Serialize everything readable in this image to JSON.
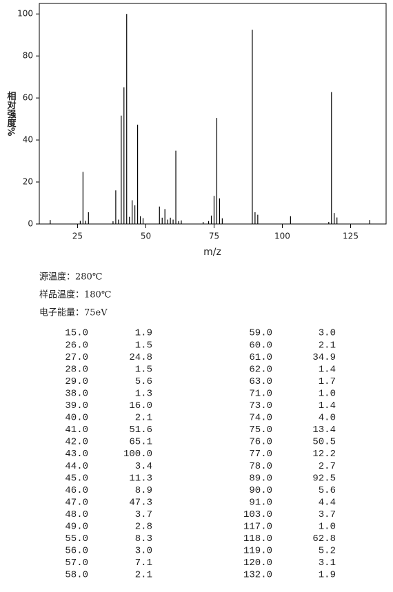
{
  "chart_data": {
    "type": "bar",
    "xlabel": "m/z",
    "ylabel": "相对强度%",
    "x": [
      15,
      26,
      27,
      28,
      29,
      38,
      39,
      40,
      41,
      42,
      43,
      44,
      45,
      46,
      47,
      48,
      49,
      55,
      56,
      57,
      58,
      59,
      60,
      61,
      62,
      63,
      71,
      73,
      74,
      75,
      76,
      77,
      78,
      89,
      90,
      91,
      103,
      117,
      118,
      119,
      120,
      132
    ],
    "values": [
      1.9,
      1.5,
      24.8,
      1.5,
      5.6,
      1.3,
      16.0,
      2.1,
      51.6,
      65.1,
      100.0,
      3.4,
      11.3,
      8.9,
      47.3,
      3.7,
      2.8,
      8.3,
      3.0,
      7.1,
      2.1,
      3.0,
      2.1,
      34.9,
      1.4,
      1.7,
      1.0,
      1.4,
      4.0,
      13.4,
      50.5,
      12.2,
      2.7,
      92.5,
      5.6,
      4.4,
      3.7,
      1.0,
      62.8,
      5.2,
      3.1,
      1.9
    ],
    "color": "#000000",
    "xlim": [
      11,
      138
    ],
    "xticks": [
      25,
      50,
      75,
      100,
      125
    ],
    "ylim": [
      0,
      105
    ],
    "yticks": [
      0,
      20,
      40,
      60,
      80,
      100
    ]
  },
  "conditions": [
    "源温度：280℃",
    "样品温度：180℃",
    "电子能量：75eV"
  ],
  "table": {
    "left": [
      [
        "15.0",
        "1.9"
      ],
      [
        "26.0",
        "1.5"
      ],
      [
        "27.0",
        "24.8"
      ],
      [
        "28.0",
        "1.5"
      ],
      [
        "29.0",
        "5.6"
      ],
      [
        "38.0",
        "1.3"
      ],
      [
        "39.0",
        "16.0"
      ],
      [
        "40.0",
        "2.1"
      ],
      [
        "41.0",
        "51.6"
      ],
      [
        "42.0",
        "65.1"
      ],
      [
        "43.0",
        "100.0"
      ],
      [
        "44.0",
        "3.4"
      ],
      [
        "45.0",
        "11.3"
      ],
      [
        "46.0",
        "8.9"
      ],
      [
        "47.0",
        "47.3"
      ],
      [
        "48.0",
        "3.7"
      ],
      [
        "49.0",
        "2.8"
      ],
      [
        "55.0",
        "8.3"
      ],
      [
        "56.0",
        "3.0"
      ],
      [
        "57.0",
        "7.1"
      ],
      [
        "58.0",
        "2.1"
      ]
    ],
    "right": [
      [
        "59.0",
        "3.0"
      ],
      [
        "60.0",
        "2.1"
      ],
      [
        "61.0",
        "34.9"
      ],
      [
        "62.0",
        "1.4"
      ],
      [
        "63.0",
        "1.7"
      ],
      [
        "71.0",
        "1.0"
      ],
      [
        "73.0",
        "1.4"
      ],
      [
        "74.0",
        "4.0"
      ],
      [
        "75.0",
        "13.4"
      ],
      [
        "76.0",
        "50.5"
      ],
      [
        "77.0",
        "12.2"
      ],
      [
        "78.0",
        "2.7"
      ],
      [
        "89.0",
        "92.5"
      ],
      [
        "90.0",
        "5.6"
      ],
      [
        "91.0",
        "4.4"
      ],
      [
        "103.0",
        "3.7"
      ],
      [
        "117.0",
        "1.0"
      ],
      [
        "118.0",
        "62.8"
      ],
      [
        "119.0",
        "5.2"
      ],
      [
        "120.0",
        "3.1"
      ],
      [
        "132.0",
        "1.9"
      ]
    ]
  }
}
